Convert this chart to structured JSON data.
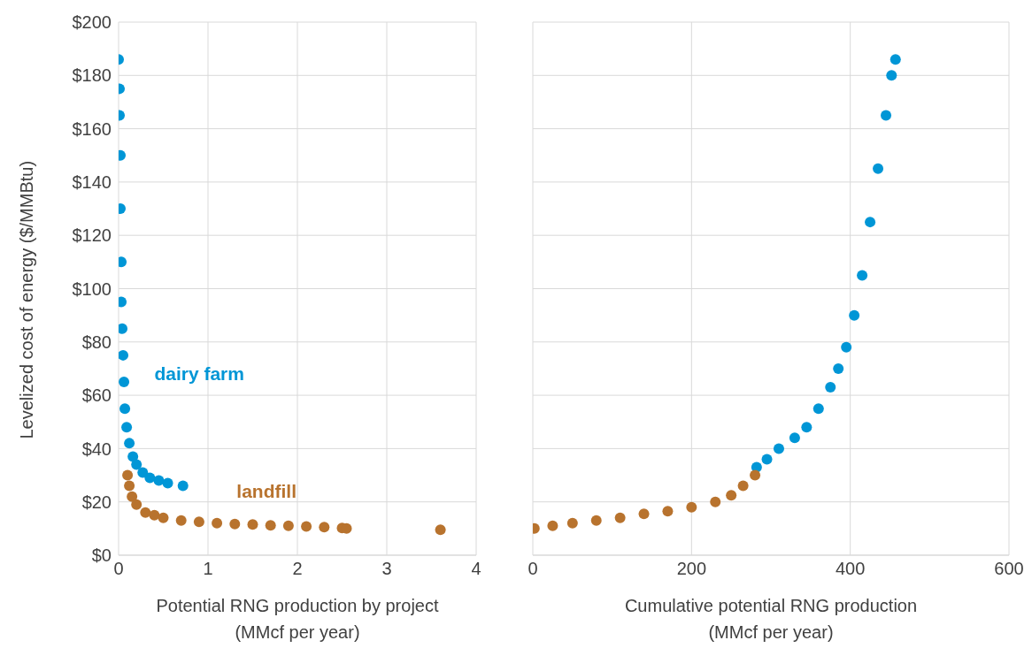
{
  "chart_data": [
    {
      "type": "scatter",
      "xlabel": "Potential RNG production by project\n(MMcf per year)",
      "ylabel": "Levelized cost of energy ($/MMBtu)",
      "xlim": [
        0,
        4
      ],
      "xticks": [
        0,
        1,
        2,
        3,
        4
      ],
      "ylim": [
        0,
        200
      ],
      "yticks": [
        {
          "value": 0,
          "label": "$0"
        },
        {
          "value": 20,
          "label": "$20"
        },
        {
          "value": 40,
          "label": "$40"
        },
        {
          "value": 60,
          "label": "$60"
        },
        {
          "value": 80,
          "label": "$80"
        },
        {
          "value": 100,
          "label": "$100"
        },
        {
          "value": 120,
          "label": "$120"
        },
        {
          "value": 140,
          "label": "$140"
        },
        {
          "value": 160,
          "label": "$160"
        },
        {
          "value": 180,
          "label": "$180"
        },
        {
          "value": 200,
          "label": "$200"
        }
      ],
      "grid": true,
      "legend": false,
      "marker": "circle",
      "series": [
        {
          "name": "dairy farm",
          "color": "#0096d6",
          "x": [
            0,
            0.01,
            0.01,
            0.02,
            0.02,
            0.03,
            0.03,
            0.04,
            0.05,
            0.06,
            0.07,
            0.09,
            0.12,
            0.16,
            0.2,
            0.27,
            0.35,
            0.45,
            0.55,
            0.72
          ],
          "values": [
            186,
            175,
            165,
            150,
            130,
            110,
            95,
            85,
            75,
            65,
            55,
            48,
            42,
            37,
            34,
            31,
            29,
            28,
            27,
            26
          ]
        },
        {
          "name": "landfill",
          "color": "#b8732e",
          "x": [
            0.1,
            0.12,
            0.15,
            0.2,
            0.3,
            0.4,
            0.5,
            0.7,
            0.9,
            1.1,
            1.3,
            1.5,
            1.7,
            1.9,
            2.1,
            2.3,
            2.5,
            2.55,
            3.6
          ],
          "values": [
            30,
            26,
            22,
            19,
            16,
            15,
            14,
            13,
            12.5,
            12,
            11.7,
            11.5,
            11.2,
            11,
            10.8,
            10.5,
            10.2,
            10,
            9.5
          ]
        }
      ]
    },
    {
      "type": "scatter",
      "xlabel": "Cumulative potential RNG production\n(MMcf per year)",
      "xlim": [
        0,
        600
      ],
      "xticks": [
        0,
        200,
        400,
        600
      ],
      "ylim": [
        0,
        200
      ],
      "yticks": [
        0,
        20,
        40,
        60,
        80,
        100,
        120,
        140,
        160,
        180,
        200
      ],
      "tick_labels": "x",
      "grid": true,
      "legend": false,
      "marker": "circle",
      "series": [
        {
          "color": "#0096d6",
          "x": [
            282,
            295,
            310,
            330,
            345,
            360,
            375,
            385,
            395,
            405,
            415,
            425,
            435,
            445,
            452,
            457
          ],
          "values": [
            33,
            36,
            40,
            44,
            48,
            55,
            63,
            70,
            78,
            90,
            105,
            125,
            145,
            165,
            180,
            186
          ]
        },
        {
          "color": "#b8732e",
          "x": [
            2,
            25,
            50,
            80,
            110,
            140,
            170,
            200,
            230,
            250,
            265,
            280
          ],
          "values": [
            10,
            11,
            12,
            13,
            14,
            15.5,
            16.5,
            18,
            20,
            22.5,
            26,
            30
          ]
        }
      ]
    }
  ]
}
